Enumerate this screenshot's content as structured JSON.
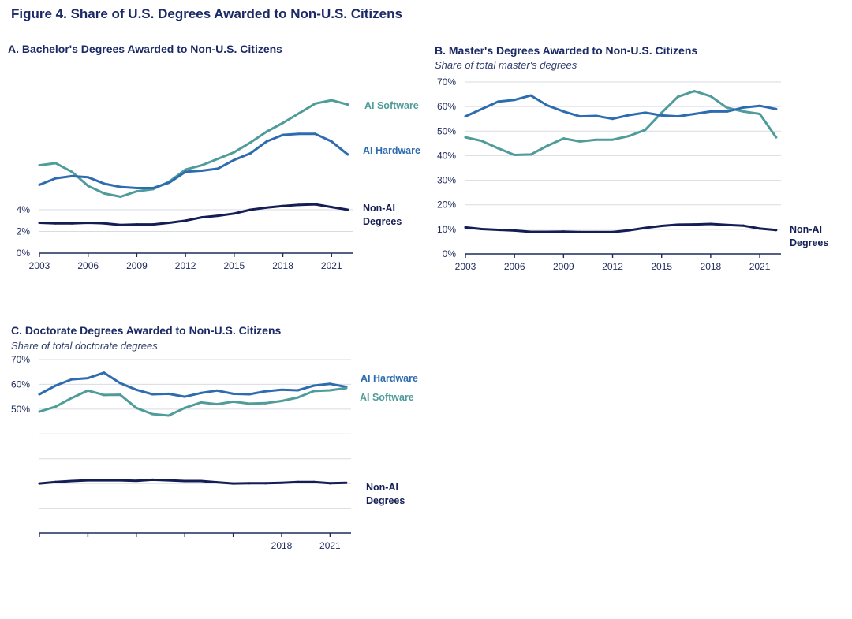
{
  "figure_title": "Figure 4. Share of U.S. Degrees Awarded to Non-U.S. Citizens",
  "colors": {
    "ai_software": "#4f9c9a",
    "ai_hardware": "#2e6cb0",
    "non_ai": "#141e55"
  },
  "chart_data": [
    {
      "id": "A",
      "type": "line",
      "title": "A. Bachelor's Degrees Awarded to Non-U.S. Citizens",
      "subtitle": "",
      "ylim": [
        0,
        16
      ],
      "yticks": [
        0,
        2,
        4
      ],
      "ytick_labels": [
        "0%",
        "2%",
        "4%"
      ],
      "x": [
        2003,
        2004,
        2005,
        2006,
        2007,
        2008,
        2009,
        2010,
        2011,
        2012,
        2013,
        2014,
        2015,
        2016,
        2017,
        2018,
        2019,
        2020,
        2021,
        2022
      ],
      "xticks": [
        2003,
        2006,
        2009,
        2012,
        2015,
        2018,
        2021
      ],
      "grid": true,
      "series": [
        {
          "name": "AI Software",
          "key": "ai_software",
          "values": [
            8.1,
            8.3,
            7.5,
            6.2,
            5.5,
            5.2,
            5.7,
            5.9,
            6.6,
            7.7,
            8.1,
            8.7,
            9.3,
            10.2,
            11.2,
            12.0,
            12.9,
            13.8,
            14.1,
            13.7
          ]
        },
        {
          "name": "AI Hardware",
          "key": "ai_hardware",
          "values": [
            6.3,
            6.9,
            7.1,
            7.0,
            6.4,
            6.1,
            6.0,
            6.0,
            6.5,
            7.5,
            7.6,
            7.8,
            8.6,
            9.2,
            10.3,
            10.9,
            11.0,
            11.0,
            10.3,
            9.1
          ]
        },
        {
          "name": "Non-AI Degrees",
          "key": "non_ai",
          "values": [
            2.8,
            2.75,
            2.75,
            2.8,
            2.75,
            2.6,
            2.65,
            2.65,
            2.8,
            3.0,
            3.3,
            3.45,
            3.65,
            4.0,
            4.2,
            4.35,
            4.45,
            4.5,
            4.25,
            4.0
          ]
        }
      ]
    },
    {
      "id": "B",
      "type": "line",
      "title": "B. Master's Degrees Awarded to Non-U.S. Citizens",
      "subtitle": "Share of total master's degrees",
      "ylim": [
        0,
        70
      ],
      "yticks": [
        0,
        10,
        20,
        30,
        40,
        50,
        60,
        70
      ],
      "ytick_labels": [
        "0%",
        "10%",
        "20%",
        "30%",
        "40%",
        "50%",
        "60%",
        "70%"
      ],
      "x": [
        2003,
        2004,
        2005,
        2006,
        2007,
        2008,
        2009,
        2010,
        2011,
        2012,
        2013,
        2014,
        2015,
        2016,
        2017,
        2018,
        2019,
        2020,
        2021,
        2022
      ],
      "xticks": [
        2003,
        2006,
        2009,
        2012,
        2015,
        2018,
        2021
      ],
      "grid": true,
      "series": [
        {
          "name": "AI Software",
          "key": "ai_software",
          "values": [
            47.5,
            46.0,
            43.0,
            40.3,
            40.5,
            44.0,
            47.0,
            45.8,
            46.5,
            46.5,
            48.0,
            50.5,
            57.5,
            64.0,
            66.3,
            64.2,
            59.5,
            58.0,
            57.0,
            47.5
          ]
        },
        {
          "name": "AI Hardware",
          "key": "ai_hardware",
          "values": [
            56.0,
            59.0,
            62.0,
            62.7,
            64.5,
            60.5,
            58.0,
            56.0,
            56.2,
            55.0,
            56.5,
            57.5,
            56.4,
            56.0,
            57.0,
            58.0,
            58.0,
            59.6,
            60.3,
            59.0
          ]
        },
        {
          "name": "Non-AI Degrees",
          "key": "non_ai",
          "values": [
            10.8,
            10.1,
            9.8,
            9.5,
            9.0,
            9.0,
            9.1,
            8.9,
            8.9,
            8.9,
            9.6,
            10.6,
            11.4,
            11.9,
            12.0,
            12.2,
            11.8,
            11.5,
            10.3,
            9.7
          ]
        }
      ]
    },
    {
      "id": "C",
      "type": "line",
      "title": "C. Doctorate Degrees Awarded to Non-U.S. Citizens",
      "subtitle": "Share of total doctorate degrees",
      "ylim": [
        0,
        70
      ],
      "yticks": [
        0,
        10,
        20,
        30,
        40,
        50,
        60,
        70
      ],
      "ytick_labels": [
        "",
        "",
        "",
        "",
        "",
        "50%",
        "60%",
        "70%"
      ],
      "x": [
        2003,
        2004,
        2005,
        2006,
        2007,
        2008,
        2009,
        2010,
        2011,
        2012,
        2013,
        2014,
        2015,
        2016,
        2017,
        2018,
        2019,
        2020,
        2021,
        2022
      ],
      "xticks": [
        2003,
        2006,
        2009,
        2012,
        2015,
        2018,
        2021
      ],
      "xtick_labels": [
        "",
        "",
        "",
        "",
        "",
        "2018",
        "2021"
      ],
      "grid": true,
      "series": [
        {
          "name": "AI Hardware",
          "key": "ai_hardware",
          "values": [
            56.0,
            59.5,
            62.0,
            62.5,
            64.7,
            60.5,
            57.8,
            56.0,
            56.2,
            55.0,
            56.5,
            57.5,
            56.2,
            56.0,
            57.2,
            57.8,
            57.6,
            59.5,
            60.2,
            59.0
          ]
        },
        {
          "name": "AI Software",
          "key": "ai_software",
          "values": [
            49.0,
            51.0,
            54.5,
            57.5,
            55.7,
            55.8,
            50.5,
            48.0,
            47.4,
            50.5,
            52.7,
            52.0,
            53.0,
            52.2,
            52.4,
            53.3,
            54.7,
            57.3,
            57.6,
            58.5
          ]
        },
        {
          "name": "Non-AI Degrees",
          "key": "non_ai",
          "values": [
            20.0,
            20.6,
            21.0,
            21.3,
            21.3,
            21.3,
            21.1,
            21.5,
            21.3,
            21.0,
            21.0,
            20.5,
            20.0,
            20.1,
            20.1,
            20.3,
            20.6,
            20.6,
            20.1,
            20.3
          ]
        }
      ]
    }
  ]
}
